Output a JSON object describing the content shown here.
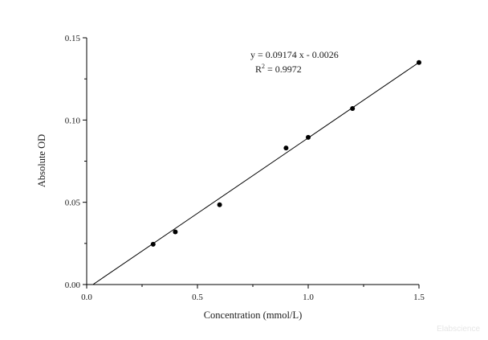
{
  "chart_data": {
    "type": "scatter",
    "xlabel": "Concentration (mmol/L)",
    "ylabel": "Absolute OD",
    "xlim": [
      0.0,
      1.5
    ],
    "ylim": [
      0.0,
      0.15
    ],
    "x_ticks": [
      "0.0",
      "0.5",
      "1.0",
      "1.5"
    ],
    "y_ticks": [
      "0.00",
      "0.05",
      "0.10",
      "0.15"
    ],
    "grid": false,
    "points": [
      {
        "x": 0.3,
        "y": 0.0245
      },
      {
        "x": 0.4,
        "y": 0.032
      },
      {
        "x": 0.6,
        "y": 0.0485
      },
      {
        "x": 0.9,
        "y": 0.083
      },
      {
        "x": 1.0,
        "y": 0.0895
      },
      {
        "x": 1.2,
        "y": 0.107
      },
      {
        "x": 1.5,
        "y": 0.135
      }
    ],
    "fit_line": {
      "slope": 0.09174,
      "intercept": -0.0026,
      "x_range": [
        0.0,
        1.5
      ]
    },
    "annotations": {
      "equation": "y = 0.09174 x - 0.0026",
      "r2_prefix": "R",
      "r2_sup": "2",
      "r2_value": " = 0.9972"
    },
    "watermark": "Elabscience"
  }
}
